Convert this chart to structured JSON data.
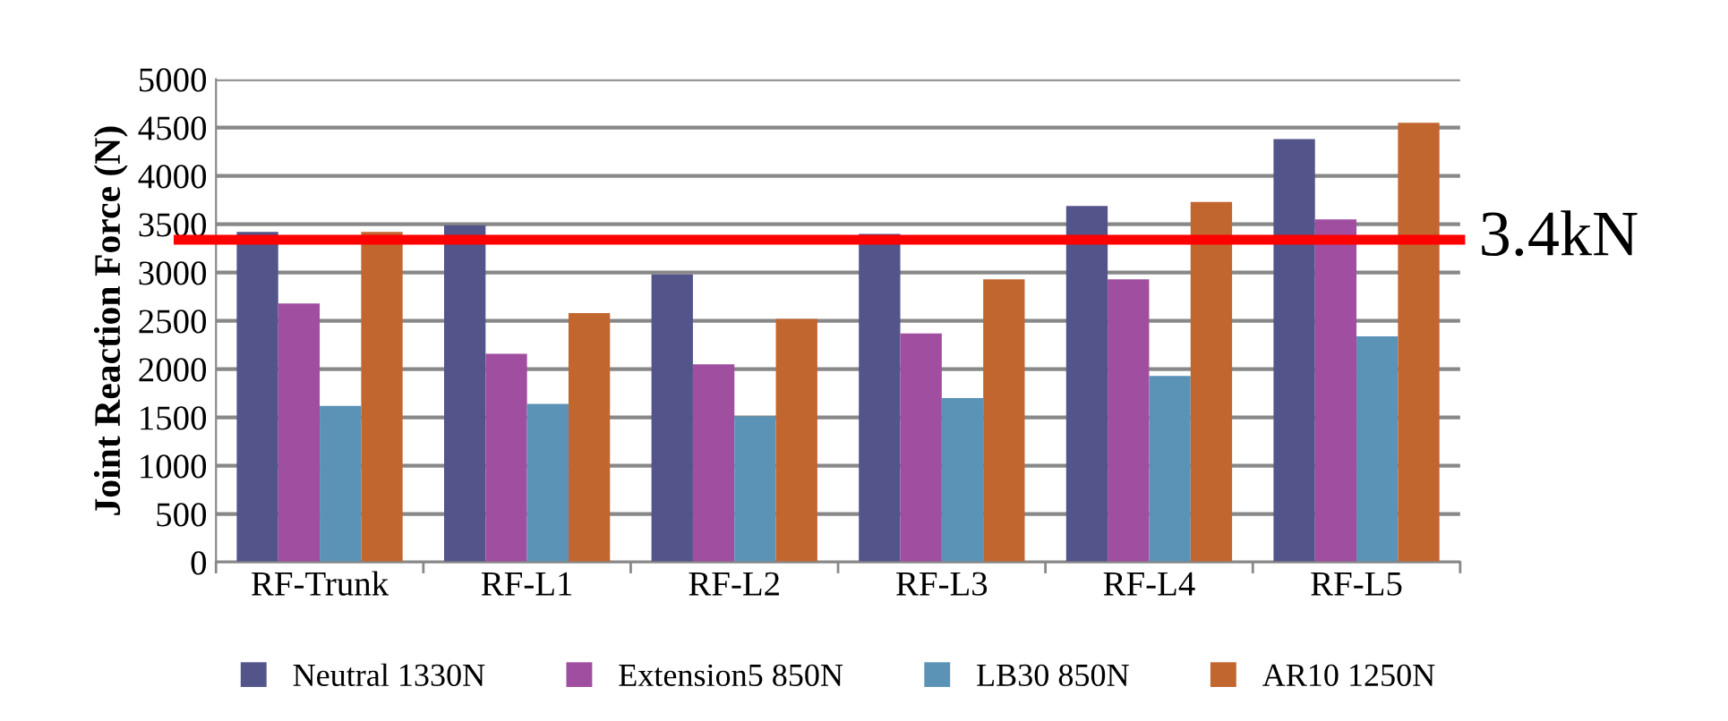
{
  "chart_data": {
    "type": "bar",
    "ylabel": "Joint Reaction Force (N)",
    "categories": [
      "RF-Trunk",
      "RF-L1",
      "RF-L2",
      "RF-L3",
      "RF-L4",
      "RF-L5"
    ],
    "series": [
      {
        "name": "Neutral 1330N",
        "color": "#53548a",
        "values": [
          3420,
          3490,
          2980,
          3400,
          3690,
          4380
        ]
      },
      {
        "name": "Extension5 850N",
        "color": "#a04ea0",
        "values": [
          2680,
          2160,
          2050,
          2370,
          2930,
          3550
        ]
      },
      {
        "name": "LB30 850N",
        "color": "#5b93b7",
        "values": [
          1620,
          1640,
          1510,
          1700,
          1930,
          2340
        ]
      },
      {
        "name": "AR10 1250N",
        "color": "#c2662f",
        "values": [
          3420,
          2580,
          2520,
          2930,
          3730,
          4550
        ]
      }
    ],
    "ylim": [
      0,
      5000
    ],
    "yticks": [
      0,
      500,
      1000,
      1500,
      2000,
      2500,
      3000,
      3500,
      4000,
      4500,
      5000
    ],
    "grid": "y",
    "legend": "bottom",
    "ref_lines": [
      {
        "axis": "y",
        "value": 3340,
        "label": "3.4kN",
        "color": "#ff0000",
        "line_style": "solid"
      }
    ]
  }
}
